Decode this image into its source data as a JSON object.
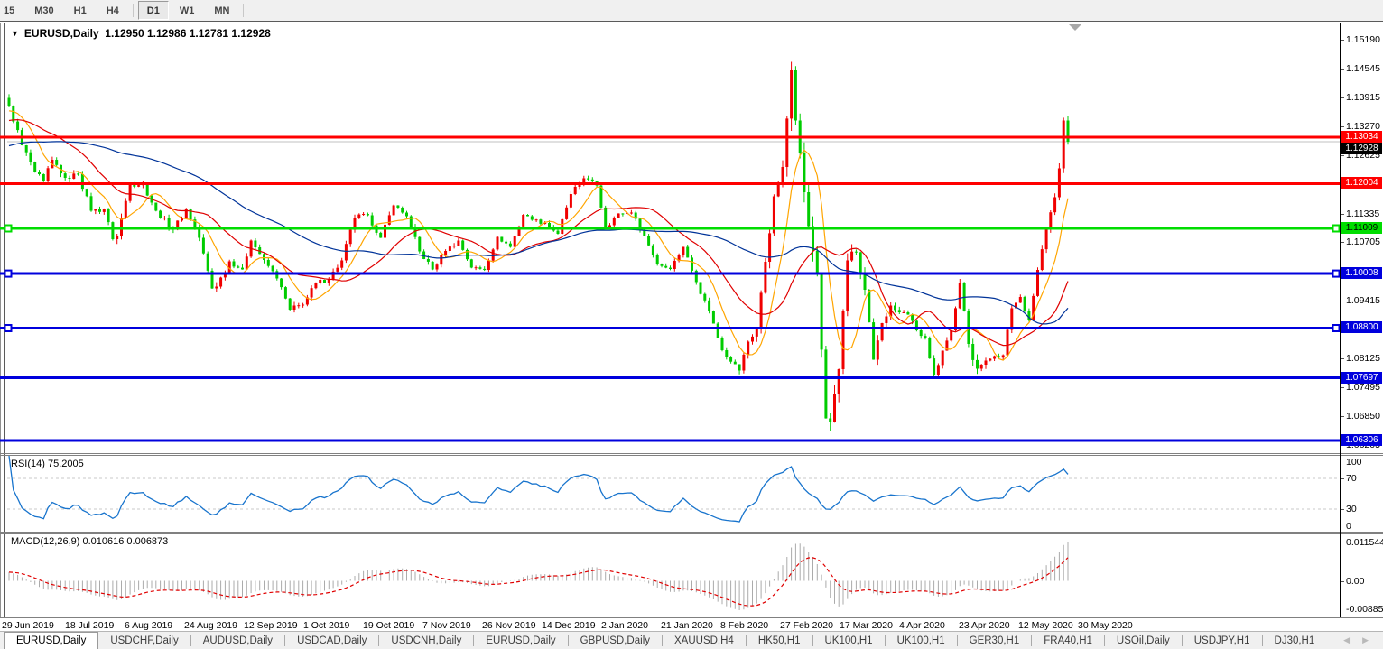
{
  "toolbar": {
    "timeframes": [
      {
        "label": "15",
        "active": false
      },
      {
        "label": "M30",
        "active": false
      },
      {
        "label": "H1",
        "active": false
      },
      {
        "label": "H4",
        "active": false
      },
      {
        "label": "D1",
        "active": true
      },
      {
        "label": "W1",
        "active": false
      },
      {
        "label": "MN",
        "active": false
      }
    ]
  },
  "main_chart": {
    "title": {
      "symbol": "EURUSD,Daily",
      "ohlc": "1.12950 1.12986 1.12781 1.12928",
      "dropdown_icon": "▼"
    },
    "price_axis_ticks": [
      "1.15190",
      "1.14545",
      "1.13915",
      "1.13270",
      "1.12625",
      "1.11335",
      "1.10705",
      "1.09415",
      "1.08125",
      "1.07495",
      "1.06850",
      "1.06205"
    ],
    "x_axis_dates": [
      "29 Jun 2019",
      "18 Jul 2019",
      "6 Aug 2019",
      "24 Aug 2019",
      "12 Sep 2019",
      "1 Oct 2019",
      "19 Oct 2019",
      "7 Nov 2019",
      "26 Nov 2019",
      "14 Dec 2019",
      "2 Jan 2020",
      "21 Jan 2020",
      "8 Feb 2020",
      "27 Feb 2020",
      "17 Mar 2020",
      "4 Apr 2020",
      "23 Apr 2020",
      "12 May 2020",
      "30 May 2020"
    ]
  },
  "rsi_pane": {
    "label": "RSI(14) 75.2005",
    "ticks": [
      "100",
      "70",
      "30",
      "0"
    ]
  },
  "macd_pane": {
    "label": "MACD(12,26,9) 0.010616 0.006873",
    "ticks": [
      "0.011544",
      "0.00",
      "-0.008858"
    ]
  },
  "tab_bar": {
    "tabs": [
      {
        "label": "EURUSD,Daily",
        "active": true
      },
      {
        "label": "USDCHF,Daily",
        "active": false
      },
      {
        "label": "AUDUSD,Daily",
        "active": false
      },
      {
        "label": "USDCAD,Daily",
        "active": false
      },
      {
        "label": "USDCNH,Daily",
        "active": false
      },
      {
        "label": "EURUSD,Daily",
        "active": false
      },
      {
        "label": "GBPUSD,Daily",
        "active": false
      },
      {
        "label": "XAUUSD,H4",
        "active": false
      },
      {
        "label": "HK50,H1",
        "active": false
      },
      {
        "label": "UK100,H1",
        "active": false
      },
      {
        "label": "UK100,H1",
        "active": false
      },
      {
        "label": "GER30,H1",
        "active": false
      },
      {
        "label": "FRA40,H1",
        "active": false
      },
      {
        "label": "USOil,Daily",
        "active": false
      },
      {
        "label": "USDJPY,H1",
        "active": false
      },
      {
        "label": "DJ30,H1",
        "active": false
      }
    ],
    "scroll_left": "◀",
    "scroll_right": "▶"
  },
  "chart_data": {
    "type": "candlestick",
    "symbol": "EURUSD",
    "timeframe": "Daily",
    "ohlc": {
      "open": "1.12950",
      "high": "1.12986",
      "low": "1.12781",
      "close": "1.12928"
    },
    "bars": 246,
    "price_axis_range": {
      "top": 1.1553,
      "bottom": 1.0603
    },
    "up_color": "#f00000",
    "down_color": "#00cc00",
    "price_keypoints_i_close_range": [
      [
        0,
        1.1373,
        0.005
      ],
      [
        3,
        1.1285,
        0.005
      ],
      [
        6,
        1.1227,
        0.004
      ],
      [
        8,
        1.1205,
        0.004
      ],
      [
        10,
        1.1253,
        0.004
      ],
      [
        13,
        1.1213,
        0.004
      ],
      [
        16,
        1.1221,
        0.004
      ],
      [
        19,
        1.114,
        0.004
      ],
      [
        22,
        1.1143,
        0.004
      ],
      [
        24,
        1.1077,
        0.005
      ],
      [
        25,
        1.1085,
        0.006
      ],
      [
        28,
        1.12,
        0.005
      ],
      [
        31,
        1.1199,
        0.004
      ],
      [
        34,
        1.114,
        0.004
      ],
      [
        38,
        1.1098,
        0.004
      ],
      [
        41,
        1.1145,
        0.004
      ],
      [
        44,
        1.108,
        0.004
      ],
      [
        47,
        1.0968,
        0.005
      ],
      [
        48,
        1.0972,
        0.005
      ],
      [
        51,
        1.1028,
        0.004
      ],
      [
        54,
        1.101,
        0.004
      ],
      [
        56,
        1.1074,
        0.004
      ],
      [
        59,
        1.1031,
        0.004
      ],
      [
        62,
        1.099,
        0.004
      ],
      [
        65,
        1.0921,
        0.004
      ],
      [
        68,
        1.0932,
        0.005
      ],
      [
        71,
        1.0979,
        0.004
      ],
      [
        74,
        1.0989,
        0.004
      ],
      [
        77,
        1.103,
        0.004
      ],
      [
        80,
        1.1125,
        0.004
      ],
      [
        83,
        1.113,
        0.004
      ],
      [
        86,
        1.108,
        0.004
      ],
      [
        89,
        1.1152,
        0.004
      ],
      [
        92,
        1.1128,
        0.004
      ],
      [
        95,
        1.105,
        0.004
      ],
      [
        98,
        1.101,
        0.004
      ],
      [
        101,
        1.1051,
        0.003
      ],
      [
        104,
        1.1074,
        0.003
      ],
      [
        107,
        1.1014,
        0.003
      ],
      [
        110,
        1.1009,
        0.003
      ],
      [
        113,
        1.1082,
        0.003
      ],
      [
        116,
        1.106,
        0.003
      ],
      [
        119,
        1.1131,
        0.003
      ],
      [
        121,
        1.112,
        0.003
      ],
      [
        124,
        1.1113,
        0.003
      ],
      [
        127,
        1.1089,
        0.003
      ],
      [
        130,
        1.1177,
        0.003
      ],
      [
        133,
        1.1212,
        0.003
      ],
      [
        136,
        1.1196,
        0.003
      ],
      [
        138,
        1.1103,
        0.004
      ],
      [
        141,
        1.1134,
        0.003
      ],
      [
        144,
        1.1136,
        0.003
      ],
      [
        147,
        1.1084,
        0.003
      ],
      [
        150,
        1.1023,
        0.003
      ],
      [
        153,
        1.1011,
        0.003
      ],
      [
        156,
        1.106,
        0.003
      ],
      [
        159,
        1.0982,
        0.004
      ],
      [
        162,
        1.0917,
        0.004
      ],
      [
        165,
        1.0831,
        0.004
      ],
      [
        168,
        1.08,
        0.004
      ],
      [
        169,
        1.0786,
        0.005
      ],
      [
        171,
        1.085,
        0.005
      ],
      [
        173,
        1.088,
        0.006
      ],
      [
        175,
        1.1027,
        0.007
      ],
      [
        177,
        1.1172,
        0.008
      ],
      [
        179,
        1.1237,
        0.009
      ],
      [
        181,
        1.1452,
        0.014
      ],
      [
        183,
        1.1268,
        0.013
      ],
      [
        185,
        1.1106,
        0.012
      ],
      [
        187,
        1.0998,
        0.012
      ],
      [
        189,
        1.068,
        0.013
      ],
      [
        190,
        1.0672,
        0.011
      ],
      [
        192,
        1.0789,
        0.01
      ],
      [
        194,
        1.103,
        0.01
      ],
      [
        196,
        1.1048,
        0.008
      ],
      [
        198,
        1.0965,
        0.008
      ],
      [
        200,
        1.081,
        0.007
      ],
      [
        202,
        1.0891,
        0.006
      ],
      [
        204,
        1.093,
        0.005
      ],
      [
        206,
        1.0915,
        0.004
      ],
      [
        208,
        1.091,
        0.004
      ],
      [
        210,
        1.0875,
        0.004
      ],
      [
        212,
        1.0857,
        0.004
      ],
      [
        214,
        1.0777,
        0.005
      ],
      [
        216,
        1.083,
        0.004
      ],
      [
        218,
        1.0875,
        0.004
      ],
      [
        220,
        1.098,
        0.005
      ],
      [
        222,
        1.0845,
        0.006
      ],
      [
        224,
        1.079,
        0.008
      ],
      [
        226,
        1.0808,
        0.005
      ],
      [
        228,
        1.0818,
        0.004
      ],
      [
        230,
        1.082,
        0.004
      ],
      [
        232,
        1.0924,
        0.004
      ],
      [
        234,
        1.0949,
        0.004
      ],
      [
        236,
        1.0898,
        0.004
      ],
      [
        238,
        1.1009,
        0.005
      ],
      [
        240,
        1.1101,
        0.005
      ],
      [
        242,
        1.117,
        0.006
      ],
      [
        243,
        1.1234,
        0.006
      ],
      [
        244,
        1.134,
        0.012
      ],
      [
        245,
        1.1293,
        0.006
      ]
    ],
    "moving_averages": [
      {
        "name": "fast",
        "period": 8,
        "color": "#ffa500"
      },
      {
        "name": "mid",
        "period": 21,
        "color": "#e00000"
      },
      {
        "name": "slow",
        "period": 55,
        "color": "#003399"
      }
    ],
    "horizontal_lines": [
      {
        "price": 1.13034,
        "color": "#ff0000",
        "badge_bg": "#ff0000",
        "badge_fg": "#ffffff",
        "handles": false
      },
      {
        "price": 1.12004,
        "color": "#ff0000",
        "badge_bg": "#ff0000",
        "badge_fg": "#ffffff",
        "handles": false
      },
      {
        "price": 1.11009,
        "color": "#00dd00",
        "badge_bg": "#00dd00",
        "badge_fg": "#000000",
        "handles": true
      },
      {
        "price": 1.10008,
        "color": "#0000dd",
        "badge_bg": "#0000dd",
        "badge_fg": "#ffffff",
        "handles": true
      },
      {
        "price": 1.088,
        "color": "#0000dd",
        "badge_bg": "#0000dd",
        "badge_fg": "#ffffff",
        "handles": true
      },
      {
        "price": 1.07697,
        "color": "#0000dd",
        "badge_bg": "#0000dd",
        "badge_fg": "#ffffff",
        "handles": false
      },
      {
        "price": 1.06306,
        "color": "#0000dd",
        "badge_bg": "#0000dd",
        "badge_fg": "#ffffff",
        "handles": false
      }
    ],
    "current_price_line": {
      "price": 1.12928,
      "color": "#c0c0c0",
      "badge_bg": "#000000",
      "badge_fg": "#ffffff"
    },
    "rsi": {
      "period": 14,
      "current": "75.2005",
      "levels": [
        70,
        30
      ],
      "scale": [
        0,
        100
      ],
      "color": "#1874cd"
    },
    "macd": {
      "fast": 12,
      "slow": 26,
      "signal": 9,
      "macd_current": "0.010616",
      "signal_current": "0.006873",
      "histogram_color": "#ababab",
      "signal_color": "#e00000"
    }
  }
}
